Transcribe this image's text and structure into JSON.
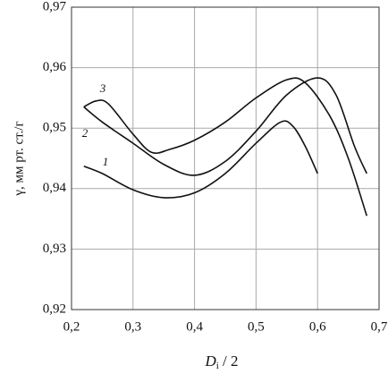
{
  "chart_data": {
    "type": "line",
    "ylabel": "γ, мм рт. ст./г",
    "xlabel": {
      "main": "D",
      "sub": "i",
      "rest": " / 2"
    },
    "xlim": [
      0.2,
      0.7
    ],
    "xticks": [
      {
        "value": 0.2,
        "label": "0,2"
      },
      {
        "value": 0.3,
        "label": "0,3"
      },
      {
        "value": 0.4,
        "label": "0,4"
      },
      {
        "value": 0.5,
        "label": "0,5"
      },
      {
        "value": 0.6,
        "label": "0,6"
      },
      {
        "value": 0.7,
        "label": "0,7"
      }
    ],
    "ylim": [
      0.92,
      0.97
    ],
    "yticks": [
      {
        "value": 0.92,
        "label": "0,92"
      },
      {
        "value": 0.93,
        "label": "0,93"
      },
      {
        "value": 0.94,
        "label": "0,94"
      },
      {
        "value": 0.95,
        "label": "0,95"
      },
      {
        "value": 0.96,
        "label": "0,96"
      },
      {
        "value": 0.97,
        "label": "0,97"
      }
    ],
    "grid": true,
    "series": [
      {
        "name": "1",
        "color": "#111111",
        "x": [
          0.22,
          0.25,
          0.3,
          0.35,
          0.4,
          0.45,
          0.5,
          0.54,
          0.56,
          0.58,
          0.6
        ],
        "values": [
          0.9437,
          0.9425,
          0.9398,
          0.9385,
          0.9393,
          0.9425,
          0.9475,
          0.951,
          0.9503,
          0.947,
          0.9425
        ]
      },
      {
        "name": "2",
        "color": "#111111",
        "x": [
          0.22,
          0.25,
          0.3,
          0.35,
          0.4,
          0.45,
          0.5,
          0.55,
          0.6,
          0.63,
          0.66,
          0.68
        ],
        "values": [
          0.9535,
          0.951,
          0.9475,
          0.944,
          0.9422,
          0.9445,
          0.9495,
          0.9555,
          0.9583,
          0.9555,
          0.947,
          0.9425
        ]
      },
      {
        "name": "3",
        "color": "#111111",
        "x": [
          0.22,
          0.24,
          0.26,
          0.3,
          0.33,
          0.36,
          0.4,
          0.45,
          0.5,
          0.55,
          0.58,
          0.62,
          0.65,
          0.68
        ],
        "values": [
          0.9535,
          0.9545,
          0.954,
          0.949,
          0.946,
          0.9465,
          0.948,
          0.951,
          0.955,
          0.958,
          0.9575,
          0.952,
          0.945,
          0.9355
        ]
      }
    ]
  }
}
